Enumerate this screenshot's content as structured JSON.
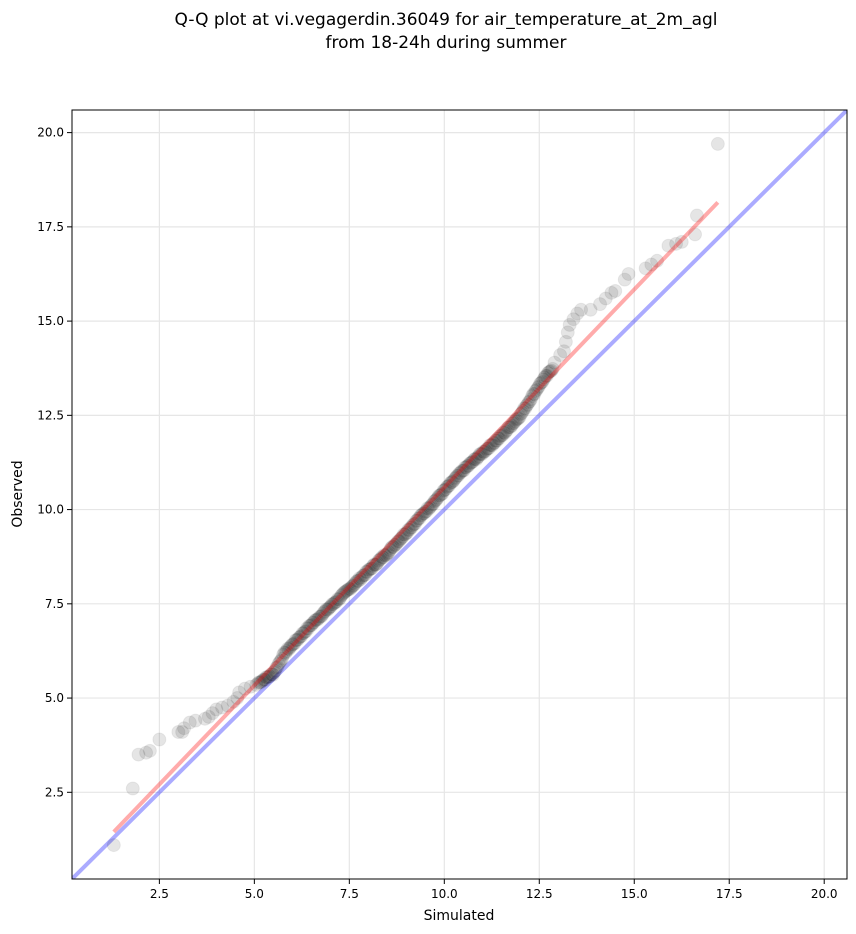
{
  "chart_data": {
    "type": "scatter",
    "title_line1": "Q-Q plot at vi.vegagerdin.36049 for air_temperature_at_2m_agl",
    "title_line2": "from 18-24h during summer",
    "xlabel": "Simulated",
    "ylabel": "Observed",
    "xlim": [
      0.2,
      20.6
    ],
    "ylim": [
      0.2,
      20.6
    ],
    "x_ticks": [
      2.5,
      5.0,
      7.5,
      10.0,
      12.5,
      15.0,
      17.5,
      20.0
    ],
    "x_tick_labels": [
      "2.5",
      "5.0",
      "7.5",
      "10.0",
      "12.5",
      "15.0",
      "17.5",
      "20.0"
    ],
    "y_ticks": [
      2.5,
      5.0,
      7.5,
      10.0,
      12.5,
      15.0,
      17.5,
      20.0
    ],
    "y_tick_labels": [
      "2.5",
      "5.0",
      "7.5",
      "10.0",
      "12.5",
      "15.0",
      "17.5",
      "20.0"
    ],
    "grid": true,
    "colors": {
      "points": "#000000",
      "one_to_one_line": "#0000ff",
      "fit_line": "#ff0000",
      "grid": "#e6e6e6"
    },
    "reference_lines": [
      {
        "kind": "identity",
        "x": [
          0.2,
          20.6
        ],
        "y": [
          0.2,
          20.6
        ]
      },
      {
        "kind": "fit",
        "x": [
          1.3,
          17.2
        ],
        "y": [
          1.45,
          18.15
        ]
      }
    ],
    "tail_points": [
      {
        "x": 1.3,
        "y": 1.1
      },
      {
        "x": 1.8,
        "y": 2.6
      },
      {
        "x": 1.95,
        "y": 3.5
      },
      {
        "x": 2.15,
        "y": 3.55
      },
      {
        "x": 2.25,
        "y": 3.6
      },
      {
        "x": 2.5,
        "y": 3.9
      },
      {
        "x": 3.0,
        "y": 4.1
      },
      {
        "x": 3.1,
        "y": 4.1
      },
      {
        "x": 3.15,
        "y": 4.2
      },
      {
        "x": 3.3,
        "y": 4.35
      },
      {
        "x": 3.45,
        "y": 4.4
      },
      {
        "x": 3.7,
        "y": 4.45
      },
      {
        "x": 3.8,
        "y": 4.5
      },
      {
        "x": 3.9,
        "y": 4.6
      },
      {
        "x": 4.0,
        "y": 4.7
      },
      {
        "x": 4.15,
        "y": 4.75
      },
      {
        "x": 4.3,
        "y": 4.8
      },
      {
        "x": 4.45,
        "y": 4.9
      },
      {
        "x": 4.55,
        "y": 5.0
      },
      {
        "x": 4.6,
        "y": 5.15
      },
      {
        "x": 4.75,
        "y": 5.25
      },
      {
        "x": 4.9,
        "y": 5.3
      },
      {
        "x": 5.05,
        "y": 5.35
      },
      {
        "x": 12.9,
        "y": 13.9
      },
      {
        "x": 13.05,
        "y": 14.1
      },
      {
        "x": 13.15,
        "y": 14.2
      },
      {
        "x": 13.2,
        "y": 14.45
      },
      {
        "x": 13.25,
        "y": 14.7
      },
      {
        "x": 13.3,
        "y": 14.9
      },
      {
        "x": 13.4,
        "y": 15.05
      },
      {
        "x": 13.5,
        "y": 15.2
      },
      {
        "x": 13.6,
        "y": 15.3
      },
      {
        "x": 13.85,
        "y": 15.3
      },
      {
        "x": 14.1,
        "y": 15.45
      },
      {
        "x": 14.25,
        "y": 15.6
      },
      {
        "x": 14.4,
        "y": 15.75
      },
      {
        "x": 14.5,
        "y": 15.8
      },
      {
        "x": 14.75,
        "y": 16.1
      },
      {
        "x": 14.85,
        "y": 16.25
      },
      {
        "x": 15.3,
        "y": 16.4
      },
      {
        "x": 15.45,
        "y": 16.5
      },
      {
        "x": 15.6,
        "y": 16.6
      },
      {
        "x": 15.9,
        "y": 17.0
      },
      {
        "x": 16.1,
        "y": 17.05
      },
      {
        "x": 16.25,
        "y": 17.1
      },
      {
        "x": 16.6,
        "y": 17.3
      },
      {
        "x": 16.65,
        "y": 17.8
      },
      {
        "x": 17.2,
        "y": 19.7
      }
    ],
    "dense_band": {
      "x_range": [
        5.1,
        12.85
      ],
      "anchors": [
        {
          "x": 5.1,
          "y": 5.4
        },
        {
          "x": 5.5,
          "y": 5.65
        },
        {
          "x": 5.8,
          "y": 6.2
        },
        {
          "x": 6.5,
          "y": 6.95
        },
        {
          "x": 7.5,
          "y": 7.9
        },
        {
          "x": 8.5,
          "y": 8.85
        },
        {
          "x": 9.5,
          "y": 9.95
        },
        {
          "x": 10.5,
          "y": 11.05
        },
        {
          "x": 11.5,
          "y": 11.95
        },
        {
          "x": 12.0,
          "y": 12.5
        },
        {
          "x": 12.5,
          "y": 13.3
        },
        {
          "x": 12.85,
          "y": 13.75
        }
      ],
      "count": 260
    }
  }
}
